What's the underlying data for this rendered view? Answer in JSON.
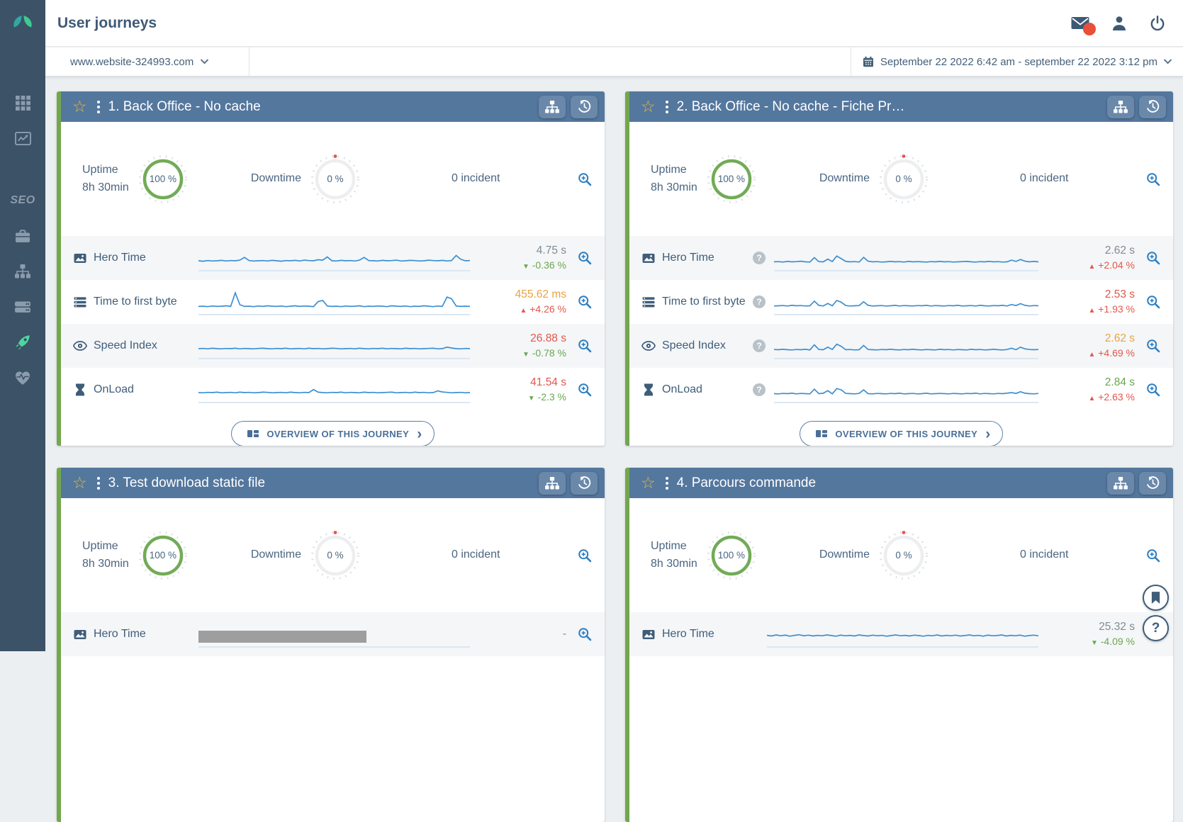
{
  "app": {
    "title": "User journeys"
  },
  "topbar": {
    "mail_badge": true
  },
  "filterbar": {
    "site": "www.website-324993.com",
    "date_range": "September 22 2022 6:42 am - september 22 2022 3:12 pm"
  },
  "sidebar": {
    "items": [
      {
        "name": "apps"
      },
      {
        "name": "analytics"
      },
      {
        "name": "seo",
        "label": "SEO"
      },
      {
        "name": "toolbox"
      },
      {
        "name": "sitemap"
      },
      {
        "name": "server"
      },
      {
        "name": "journeys",
        "active": true
      },
      {
        "name": "health"
      }
    ]
  },
  "colors": {
    "sidebar_bg": "#3c5266",
    "active_icon": "#4ed6a1",
    "card_header": "#54779e",
    "card_accent_green": "#72a74c",
    "gauge_green": "#72ab57",
    "spark_blue": "#3d8fd1",
    "value_gray": "#808b94",
    "value_orange": "#e9a440",
    "value_red": "#e2574c",
    "value_green": "#69a74f",
    "badge_red": "#e8503a",
    "star_gold": "#e7b73c",
    "icon_blue": "#3f5d79",
    "zoom_blue": "#2e7fc2"
  },
  "cards": [
    {
      "title": "1. Back Office - No cache",
      "stats": {
        "uptime_label": "Uptime",
        "uptime_period": "8h 30min",
        "uptime": "100 %",
        "downtime_label": "Downtime",
        "downtime": "0 %",
        "incidents": "0 incident"
      },
      "metrics": [
        {
          "label": "Hero Time",
          "value": "4.75 s",
          "arrow": "▼",
          "delta": "-0.36 %",
          "spark": [
            30,
            28,
            31,
            29,
            30,
            32,
            29,
            31,
            30,
            33,
            46,
            31,
            29,
            30,
            31,
            29,
            32,
            30,
            28,
            31,
            30,
            32,
            29,
            33,
            31,
            30,
            35,
            33,
            48,
            30,
            29,
            32,
            30,
            31,
            29,
            33,
            46,
            31,
            30,
            29,
            32,
            30,
            31,
            33,
            29,
            30,
            32,
            31,
            29,
            30,
            33,
            31,
            30,
            32,
            29,
            31,
            55,
            37,
            30,
            31
          ]
        },
        {
          "label": "Time to first byte",
          "value": "455.62 ms",
          "arrow": "▲",
          "delta": "+4.26 %",
          "spark": [
            22,
            23,
            21,
            24,
            22,
            23,
            25,
            22,
            86,
            30,
            22,
            23,
            21,
            24,
            22,
            25,
            23,
            22,
            24,
            21,
            23,
            25,
            22,
            24,
            23,
            21,
            45,
            50,
            24,
            22,
            23,
            21,
            24,
            22,
            23,
            25,
            21,
            23,
            22,
            24,
            23,
            21,
            25,
            23,
            22,
            24,
            21,
            23,
            22,
            25,
            23,
            21,
            24,
            22,
            66,
            58,
            24,
            22,
            23,
            22
          ]
        },
        {
          "label": "Speed Index",
          "value": "26.88 s",
          "arrow": "▼",
          "delta": "-0.78 %",
          "spark": [
            30,
            31,
            29,
            32,
            30,
            29,
            31,
            30,
            32,
            29,
            31,
            30,
            29,
            31,
            32,
            30,
            29,
            31,
            30,
            32,
            29,
            30,
            31,
            29,
            32,
            30,
            31,
            29,
            30,
            32,
            31,
            29,
            30,
            31,
            29,
            32,
            30,
            29,
            31,
            30,
            32,
            29,
            31,
            30,
            29,
            32,
            30,
            31,
            29,
            30,
            31,
            32,
            29,
            30,
            37,
            33,
            30,
            29,
            31,
            30
          ]
        },
        {
          "label": "OnLoad",
          "value": "41.54 s",
          "arrow": "▼",
          "delta": "-2.3 %",
          "spark": [
            30,
            29,
            31,
            30,
            32,
            29,
            30,
            31,
            29,
            32,
            30,
            31,
            29,
            30,
            32,
            31,
            29,
            30,
            31,
            29,
            32,
            30,
            29,
            31,
            30,
            44,
            32,
            30,
            29,
            31,
            30,
            32,
            29,
            31,
            30,
            29,
            32,
            30,
            31,
            29,
            30,
            31,
            32,
            29,
            30,
            31,
            29,
            32,
            30,
            31,
            29,
            30,
            38,
            33,
            31,
            29,
            30,
            31,
            29,
            30
          ]
        }
      ],
      "overview_label": "OVERVIEW OF THIS JOURNEY"
    },
    {
      "title": "2. Back Office - No cache - Fiche Pr…",
      "stats": {
        "uptime_label": "Uptime",
        "uptime_period": "8h 30min",
        "uptime": "100 %",
        "downtime_label": "Downtime",
        "downtime": "0 %",
        "incidents": "0 incident"
      },
      "metrics": [
        {
          "label": "Hero Time",
          "value": "2.62 s",
          "arrow": "▲",
          "delta": "+2.04 %",
          "spark": [
            25,
            26,
            24,
            27,
            25,
            26,
            28,
            25,
            24,
            45,
            26,
            25,
            38,
            26,
            52,
            40,
            27,
            25,
            26,
            24,
            46,
            28,
            25,
            26,
            24,
            25,
            27,
            25,
            26,
            24,
            27,
            25,
            26,
            25,
            24,
            26,
            25,
            27,
            25,
            26,
            24,
            25,
            26,
            27,
            25,
            24,
            26,
            25,
            27,
            25,
            26,
            24,
            25,
            33,
            27,
            36,
            28,
            25,
            27,
            25
          ]
        },
        {
          "label": "Time to first byte",
          "value": "2.53 s",
          "arrow": "▲",
          "delta": "+1.93 %",
          "spark": [
            24,
            25,
            26,
            24,
            27,
            25,
            26,
            24,
            25,
            47,
            27,
            24,
            36,
            25,
            50,
            42,
            26,
            24,
            25,
            26,
            44,
            27,
            24,
            25,
            26,
            24,
            25,
            27,
            24,
            26,
            25,
            24,
            26,
            25,
            27,
            24,
            26,
            25,
            24,
            26,
            25,
            27,
            24,
            25,
            26,
            24,
            27,
            25,
            24,
            26,
            25,
            27,
            24,
            31,
            26,
            35,
            27,
            24,
            26,
            25
          ]
        },
        {
          "label": "Speed Index",
          "value": "2.62 s",
          "arrow": "▲",
          "delta": "+4.69 %",
          "spark": [
            26,
            25,
            27,
            25,
            24,
            26,
            25,
            27,
            24,
            48,
            26,
            25,
            37,
            26,
            51,
            41,
            25,
            26,
            24,
            25,
            45,
            26,
            25,
            24,
            26,
            25,
            27,
            25,
            24,
            26,
            25,
            27,
            25,
            24,
            26,
            25,
            24,
            27,
            25,
            26,
            24,
            26,
            25,
            24,
            27,
            25,
            26,
            24,
            25,
            27,
            25,
            24,
            26,
            32,
            25,
            37,
            29,
            26,
            25,
            26
          ]
        },
        {
          "label": "OnLoad",
          "value": "2.84 s",
          "arrow": "▲",
          "delta": "+2.63 %",
          "spark": [
            25,
            24,
            26,
            25,
            27,
            24,
            26,
            25,
            24,
            46,
            25,
            27,
            39,
            24,
            49,
            43,
            26,
            25,
            24,
            26,
            43,
            25,
            24,
            26,
            25,
            24,
            26,
            25,
            27,
            24,
            25,
            26,
            24,
            25,
            27,
            24,
            25,
            26,
            25,
            24,
            26,
            25,
            24,
            26,
            25,
            27,
            24,
            26,
            25,
            24,
            26,
            25,
            27,
            30,
            26,
            34,
            27,
            25,
            24,
            26
          ]
        }
      ],
      "overview_label": "OVERVIEW OF THIS JOURNEY"
    },
    {
      "title": "3. Test download static file",
      "stats": {
        "uptime_label": "Uptime",
        "uptime_period": "8h 30min",
        "uptime": "100 %",
        "downtime_label": "Downtime",
        "downtime": "0 %",
        "incidents": "0 incident"
      },
      "metrics": [
        {
          "label": "Hero Time",
          "value": "-"
        }
      ]
    },
    {
      "title": "4. Parcours commande",
      "stats": {
        "uptime_label": "Uptime",
        "uptime_period": "8h 30min",
        "uptime": "100 %",
        "downtime_label": "Downtime",
        "downtime": "0 %",
        "incidents": "0 incident"
      },
      "metrics": [
        {
          "label": "Hero Time",
          "value": "25.32 s",
          "arrow": "▼",
          "delta": "-4.09 %",
          "spark": [
            38,
            35,
            40,
            36,
            39,
            34,
            38,
            41,
            36,
            39,
            35,
            38,
            36,
            40,
            37,
            34,
            39,
            36,
            38,
            35,
            40,
            37,
            35,
            39,
            36,
            38,
            34,
            37,
            40,
            36,
            38,
            35,
            39,
            37,
            34,
            38,
            36,
            40,
            35,
            38,
            36,
            39,
            35,
            37,
            40,
            36,
            38,
            34,
            39,
            36,
            37,
            40,
            35,
            38,
            36,
            39,
            34,
            37,
            39,
            36
          ]
        }
      ]
    }
  ]
}
